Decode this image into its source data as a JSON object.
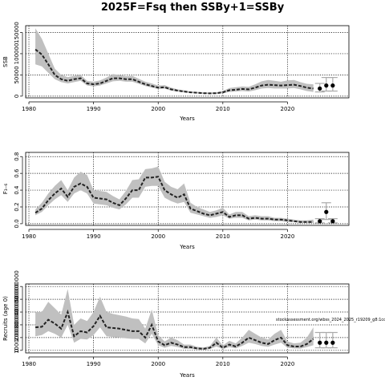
{
  "page_title": "2025F=Fsq then SSBy+1=SSBy",
  "note_text": "stockassessment.org/wbss_2024_2025_r19209_g8:1cc",
  "colors": {
    "band": "#c0c0c0",
    "line": "#222222",
    "grid": "#000000",
    "point": "#000000",
    "whisker": "#aaaaaa"
  },
  "chart_data": [
    {
      "type": "line",
      "ylabel": "SSB",
      "xlabel": "Years",
      "xlim": [
        1979.5,
        2029.5
      ],
      "ylim": [
        -4000,
        166000
      ],
      "xticks": [
        1980,
        1990,
        2000,
        2010,
        2020
      ],
      "yticks": [
        0,
        50000,
        100000,
        150000
      ],
      "ytick_labels": [
        "0",
        "50000",
        "100000",
        "150000"
      ],
      "x": [
        1981,
        1982,
        1983,
        1984,
        1985,
        1986,
        1987,
        1988,
        1989,
        1990,
        1991,
        1992,
        1993,
        1994,
        1995,
        1996,
        1997,
        1998,
        1999,
        2000,
        2001,
        2002,
        2003,
        2004,
        2005,
        2006,
        2007,
        2008,
        2009,
        2010,
        2011,
        2012,
        2013,
        2014,
        2015,
        2016,
        2017,
        2018,
        2019,
        2020,
        2021,
        2022,
        2023,
        2024
      ],
      "series": [
        {
          "estimate": [
            110000,
            98000,
            75000,
            50000,
            40000,
            36000,
            40000,
            42000,
            30000,
            28000,
            30000,
            36000,
            42000,
            42000,
            40000,
            40000,
            34000,
            28000,
            24000,
            20000,
            21000,
            16000,
            13000,
            11000,
            9000,
            8000,
            7000,
            6500,
            7000,
            9000,
            14000,
            15000,
            17000,
            16000,
            20000,
            25000,
            27000,
            26000,
            25000,
            26000,
            27000,
            24000,
            20000,
            18000
          ],
          "lower": [
            75000,
            70000,
            55000,
            40000,
            33000,
            30000,
            33000,
            36000,
            25000,
            23000,
            25000,
            30000,
            35000,
            36000,
            34000,
            34000,
            29000,
            24000,
            20000,
            17000,
            18000,
            13000,
            11000,
            9000,
            7500,
            6500,
            5500,
            5000,
            5500,
            7000,
            10000,
            11000,
            12000,
            11000,
            14000,
            18000,
            19000,
            18000,
            18000,
            18000,
            19000,
            16000,
            12000,
            10000
          ],
          "upper": [
            160000,
            135000,
            100000,
            65000,
            50000,
            45000,
            48000,
            50000,
            36000,
            34000,
            37000,
            44000,
            52000,
            50000,
            47000,
            48000,
            41000,
            34000,
            30000,
            25000,
            26000,
            20000,
            16000,
            14000,
            11000,
            10000,
            9000,
            8500,
            9000,
            12000,
            19000,
            21000,
            23000,
            22000,
            28000,
            35000,
            38000,
            36000,
            34000,
            37000,
            38000,
            33000,
            29000,
            28000
          ]
        }
      ],
      "forecast": [
        {
          "year": 2025,
          "value": 18000,
          "low": 10000,
          "high": 30000
        },
        {
          "year": 2026,
          "value": 25000,
          "low": 12000,
          "high": 44000
        },
        {
          "year": 2027,
          "value": 25000,
          "low": 12000,
          "high": 44000
        }
      ]
    },
    {
      "type": "line",
      "ylabel": "F₃₋₆",
      "xlabel": "Years",
      "xlim": [
        1979.5,
        2029.5
      ],
      "ylim": [
        -0.02,
        0.85
      ],
      "xticks": [
        1980,
        1990,
        2000,
        2010,
        2020
      ],
      "yticks": [
        0.0,
        0.2,
        0.4,
        0.6,
        0.8
      ],
      "ytick_labels": [
        "0.0",
        "0.2",
        "0.4",
        "0.6",
        "0.8"
      ],
      "x": [
        1981,
        1982,
        1983,
        1984,
        1985,
        1986,
        1987,
        1988,
        1989,
        1990,
        1991,
        1992,
        1993,
        1994,
        1995,
        1996,
        1997,
        1998,
        1999,
        2000,
        2001,
        2002,
        2003,
        2004,
        2005,
        2006,
        2007,
        2008,
        2009,
        2010,
        2011,
        2012,
        2013,
        2014,
        2015,
        2016,
        2017,
        2018,
        2019,
        2020,
        2021,
        2022,
        2023,
        2024
      ],
      "series": [
        {
          "estimate": [
            0.13,
            0.18,
            0.28,
            0.36,
            0.42,
            0.32,
            0.44,
            0.48,
            0.44,
            0.31,
            0.3,
            0.29,
            0.25,
            0.22,
            0.3,
            0.4,
            0.4,
            0.55,
            0.55,
            0.56,
            0.4,
            0.35,
            0.31,
            0.35,
            0.18,
            0.15,
            0.12,
            0.1,
            0.12,
            0.14,
            0.08,
            0.1,
            0.1,
            0.06,
            0.07,
            0.06,
            0.06,
            0.05,
            0.05,
            0.04,
            0.03,
            0.02,
            0.02,
            0.02
          ],
          "lower": [
            0.1,
            0.14,
            0.22,
            0.29,
            0.34,
            0.26,
            0.36,
            0.4,
            0.36,
            0.24,
            0.23,
            0.22,
            0.19,
            0.17,
            0.23,
            0.31,
            0.31,
            0.44,
            0.45,
            0.45,
            0.31,
            0.27,
            0.24,
            0.26,
            0.13,
            0.11,
            0.09,
            0.07,
            0.08,
            0.1,
            0.06,
            0.07,
            0.07,
            0.04,
            0.05,
            0.04,
            0.04,
            0.03,
            0.03,
            0.02,
            0.02,
            0.01,
            0.01,
            0.01
          ],
          "upper": [
            0.17,
            0.25,
            0.36,
            0.45,
            0.52,
            0.4,
            0.55,
            0.62,
            0.58,
            0.4,
            0.39,
            0.38,
            0.33,
            0.29,
            0.39,
            0.52,
            0.53,
            0.65,
            0.66,
            0.68,
            0.5,
            0.44,
            0.41,
            0.48,
            0.25,
            0.2,
            0.17,
            0.14,
            0.16,
            0.19,
            0.11,
            0.14,
            0.14,
            0.09,
            0.1,
            0.09,
            0.09,
            0.07,
            0.07,
            0.06,
            0.05,
            0.04,
            0.04,
            0.05
          ]
        }
      ],
      "forecast": [
        {
          "year": 2025,
          "value": 0.03,
          "low": 0.01,
          "high": 0.06
        },
        {
          "year": 2026,
          "value": 0.14,
          "low": 0.05,
          "high": 0.25
        },
        {
          "year": 2027,
          "value": 0.03,
          "low": 0.01,
          "high": 0.06
        }
      ]
    },
    {
      "type": "line",
      "ylabel": "Recruits (age 0)",
      "xlabel": "Years",
      "xlim": [
        1979.5,
        2029.5
      ],
      "ylim": [
        -20000000,
        520000000
      ],
      "xticks": [
        1980,
        1990,
        2000,
        2010,
        2020
      ],
      "yticks": [
        0,
        100000000,
        200000000,
        300000000,
        400000000,
        500000000
      ],
      "ytick_labels": [
        "0",
        "100000000",
        "200000000",
        "300000000",
        "400000000",
        "500000000"
      ],
      "x": [
        1981,
        1982,
        1983,
        1984,
        1985,
        1986,
        1987,
        1988,
        1989,
        1990,
        1991,
        1992,
        1993,
        1994,
        1995,
        1996,
        1997,
        1998,
        1999,
        2000,
        2001,
        2002,
        2003,
        2004,
        2005,
        2006,
        2007,
        2008,
        2009,
        2010,
        2011,
        2012,
        2013,
        2014,
        2015,
        2016,
        2017,
        2018,
        2019,
        2020,
        2021,
        2022,
        2023,
        2024
      ],
      "series": [
        {
          "estimate": [
            180000000,
            185000000,
            240000000,
            210000000,
            170000000,
            300000000,
            110000000,
            150000000,
            140000000,
            190000000,
            270000000,
            180000000,
            175000000,
            170000000,
            160000000,
            150000000,
            150000000,
            100000000,
            200000000,
            70000000,
            40000000,
            60000000,
            45000000,
            25000000,
            25000000,
            15000000,
            12000000,
            20000000,
            60000000,
            20000000,
            45000000,
            30000000,
            60000000,
            100000000,
            80000000,
            60000000,
            50000000,
            80000000,
            100000000,
            40000000,
            30000000,
            30000000,
            50000000,
            90000000
          ],
          "lower": [
            110000000,
            120000000,
            150000000,
            130000000,
            100000000,
            200000000,
            60000000,
            90000000,
            85000000,
            120000000,
            180000000,
            110000000,
            105000000,
            100000000,
            95000000,
            90000000,
            90000000,
            55000000,
            130000000,
            40000000,
            20000000,
            35000000,
            25000000,
            12000000,
            12000000,
            7000000,
            5000000,
            10000000,
            30000000,
            10000000,
            25000000,
            15000000,
            35000000,
            60000000,
            50000000,
            35000000,
            28000000,
            45000000,
            60000000,
            20000000,
            15000000,
            14000000,
            25000000,
            40000000
          ],
          "upper": [
            300000000,
            300000000,
            380000000,
            330000000,
            280000000,
            480000000,
            200000000,
            250000000,
            230000000,
            300000000,
            420000000,
            300000000,
            285000000,
            275000000,
            265000000,
            250000000,
            245000000,
            170000000,
            320000000,
            120000000,
            70000000,
            100000000,
            80000000,
            45000000,
            45000000,
            28000000,
            22000000,
            35000000,
            100000000,
            38000000,
            75000000,
            55000000,
            100000000,
            160000000,
            130000000,
            100000000,
            85000000,
            130000000,
            160000000,
            70000000,
            55000000,
            60000000,
            100000000,
            180000000
          ]
        }
      ],
      "forecast": [
        {
          "year": 2025,
          "value": 60000000,
          "low": 20000000,
          "high": 140000000
        },
        {
          "year": 2026,
          "value": 60000000,
          "low": 20000000,
          "high": 140000000
        },
        {
          "year": 2027,
          "value": 60000000,
          "low": 20000000,
          "high": 140000000
        }
      ]
    }
  ]
}
